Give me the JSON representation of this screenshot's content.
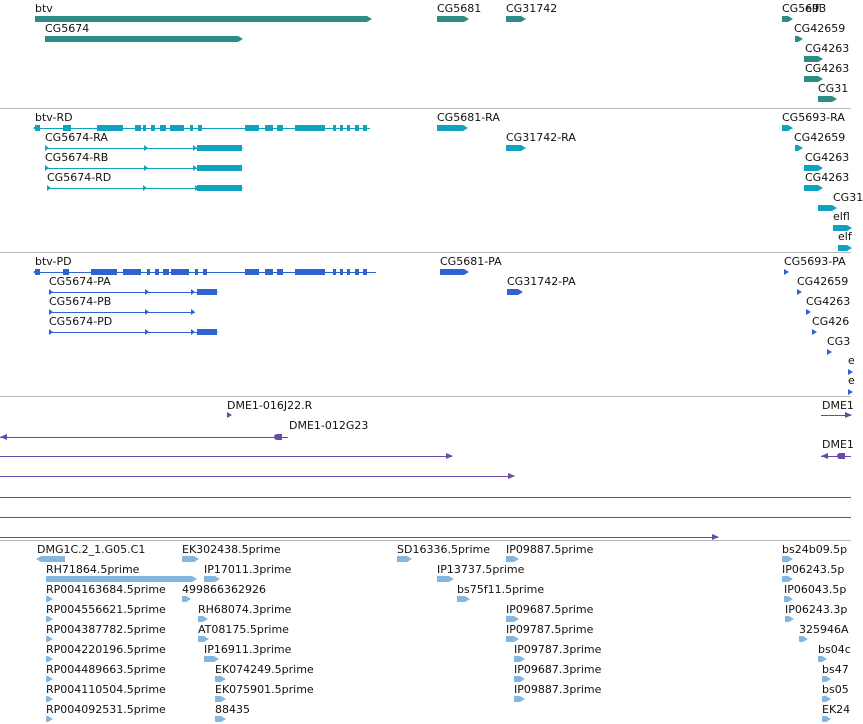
{
  "browser": {
    "tracks": [
      {
        "name": "gene-track",
        "color": "#2e8b86",
        "features": [
          {
            "label": "btv",
            "strand": "+"
          },
          {
            "label": "CG5674",
            "strand": "+"
          },
          {
            "label": "CG5681",
            "strand": "+"
          },
          {
            "label": "CG31742",
            "strand": "+"
          },
          {
            "label": "CG5693",
            "strand": "+"
          },
          {
            "label": "elfl",
            "strand": "+"
          },
          {
            "label": "CG42659",
            "strand": "+"
          },
          {
            "label": "CG4263",
            "strand": "+"
          },
          {
            "label": "CG4263",
            "strand": "+"
          },
          {
            "label": "CG31",
            "strand": "+"
          }
        ]
      },
      {
        "name": "transcript-track",
        "color": "#0fa3bf",
        "features": [
          {
            "label": "btv-RD",
            "strand": "-"
          },
          {
            "label": "CG5674-RA",
            "strand": "+"
          },
          {
            "label": "CG5674-RB",
            "strand": "+"
          },
          {
            "label": "CG5674-RD",
            "strand": "+"
          },
          {
            "label": "CG5681-RA",
            "strand": "+"
          },
          {
            "label": "CG31742-RA",
            "strand": "+"
          },
          {
            "label": "CG5693-RA",
            "strand": "+"
          },
          {
            "label": "CG42659",
            "strand": "+"
          },
          {
            "label": "CG4263",
            "strand": "+"
          },
          {
            "label": "CG4263",
            "strand": "+"
          },
          {
            "label": "CG31",
            "strand": "+"
          },
          {
            "label": "elfl",
            "strand": "+"
          },
          {
            "label": "elf",
            "strand": "+"
          }
        ]
      },
      {
        "name": "protein-track",
        "color": "#2f63d2",
        "features": [
          {
            "label": "btv-PD",
            "strand": "-"
          },
          {
            "label": "CG5674-PA",
            "strand": "+"
          },
          {
            "label": "CG5674-PB",
            "strand": "+"
          },
          {
            "label": "CG5674-PD",
            "strand": "+"
          },
          {
            "label": "CG5681-PA",
            "strand": "+"
          },
          {
            "label": "CG31742-PA",
            "strand": "+"
          },
          {
            "label": "CG5693-PA",
            "strand": "+"
          },
          {
            "label": "CG42659",
            "strand": "+"
          },
          {
            "label": "CG4263",
            "strand": "+"
          },
          {
            "label": "CG426",
            "strand": "+"
          },
          {
            "label": "CG3",
            "strand": "+"
          },
          {
            "label": "e",
            "strand": "+"
          },
          {
            "label": "e",
            "strand": "+"
          }
        ]
      },
      {
        "name": "clone-track",
        "color": "#6a4aa8",
        "features": [
          {
            "label": "DME1-016J22.R",
            "strand": "+"
          },
          {
            "label": "DME1-012G23",
            "strand": "-"
          },
          {
            "label": "DME1",
            "strand": "+"
          },
          {
            "label": "DME1",
            "strand": "-"
          },
          {
            "label": "",
            "strand": "+"
          },
          {
            "label": "",
            "strand": "+"
          },
          {
            "label": "",
            "strand": "none"
          },
          {
            "label": "",
            "strand": "none"
          },
          {
            "label": "",
            "strand": "+"
          }
        ]
      },
      {
        "name": "est-track",
        "color": "#86b6dd",
        "features": [
          {
            "label": "DMG1C.2_1.G05.C1",
            "strand": "-"
          },
          {
            "label": "EK302438.5prime",
            "strand": "+"
          },
          {
            "label": "SD16336.5prime",
            "strand": "+"
          },
          {
            "label": "IP09887.5prime",
            "strand": "+"
          },
          {
            "label": "bs24b09.5p",
            "strand": "+"
          },
          {
            "label": "RH71864.5prime",
            "strand": "+"
          },
          {
            "label": "IP17011.3prime",
            "strand": "+"
          },
          {
            "label": "IP13737.5prime",
            "strand": "+"
          },
          {
            "label": "IP06243.5p",
            "strand": "+"
          },
          {
            "label": "RP004163684.5prime",
            "strand": "+"
          },
          {
            "label": "499866362926",
            "strand": "+"
          },
          {
            "label": "bs75f11.5prime",
            "strand": "+"
          },
          {
            "label": "IP06043.5p",
            "strand": "+"
          },
          {
            "label": "RP004556621.5prime",
            "strand": "+"
          },
          {
            "label": "RH68074.3prime",
            "strand": "+"
          },
          {
            "label": "IP09687.5prime",
            "strand": "+"
          },
          {
            "label": "IP06243.3p",
            "strand": "+"
          },
          {
            "label": "RP004387782.5prime",
            "strand": "+"
          },
          {
            "label": "AT08175.5prime",
            "strand": "+"
          },
          {
            "label": "IP09787.5prime",
            "strand": "+"
          },
          {
            "label": "325946A",
            "strand": "+"
          },
          {
            "label": "RP004220196.5prime",
            "strand": "+"
          },
          {
            "label": "IP16911.3prime",
            "strand": "+"
          },
          {
            "label": "IP09787.3prime",
            "strand": "+"
          },
          {
            "label": "bs04c",
            "strand": "+"
          },
          {
            "label": "RP004489663.5prime",
            "strand": "+"
          },
          {
            "label": "EK074249.5prime",
            "strand": "+"
          },
          {
            "label": "IP09687.3prime",
            "strand": "+"
          },
          {
            "label": "bs47",
            "strand": "+"
          },
          {
            "label": "RP004110504.5prime",
            "strand": "+"
          },
          {
            "label": "EK075901.5prime",
            "strand": "+"
          },
          {
            "label": "IP09887.3prime",
            "strand": "+"
          },
          {
            "label": "bs05",
            "strand": "+"
          },
          {
            "label": "RP004092531.5prime",
            "strand": "+"
          },
          {
            "label": "88435",
            "strand": "+"
          },
          {
            "label": "EK24",
            "strand": "+"
          }
        ]
      }
    ]
  }
}
